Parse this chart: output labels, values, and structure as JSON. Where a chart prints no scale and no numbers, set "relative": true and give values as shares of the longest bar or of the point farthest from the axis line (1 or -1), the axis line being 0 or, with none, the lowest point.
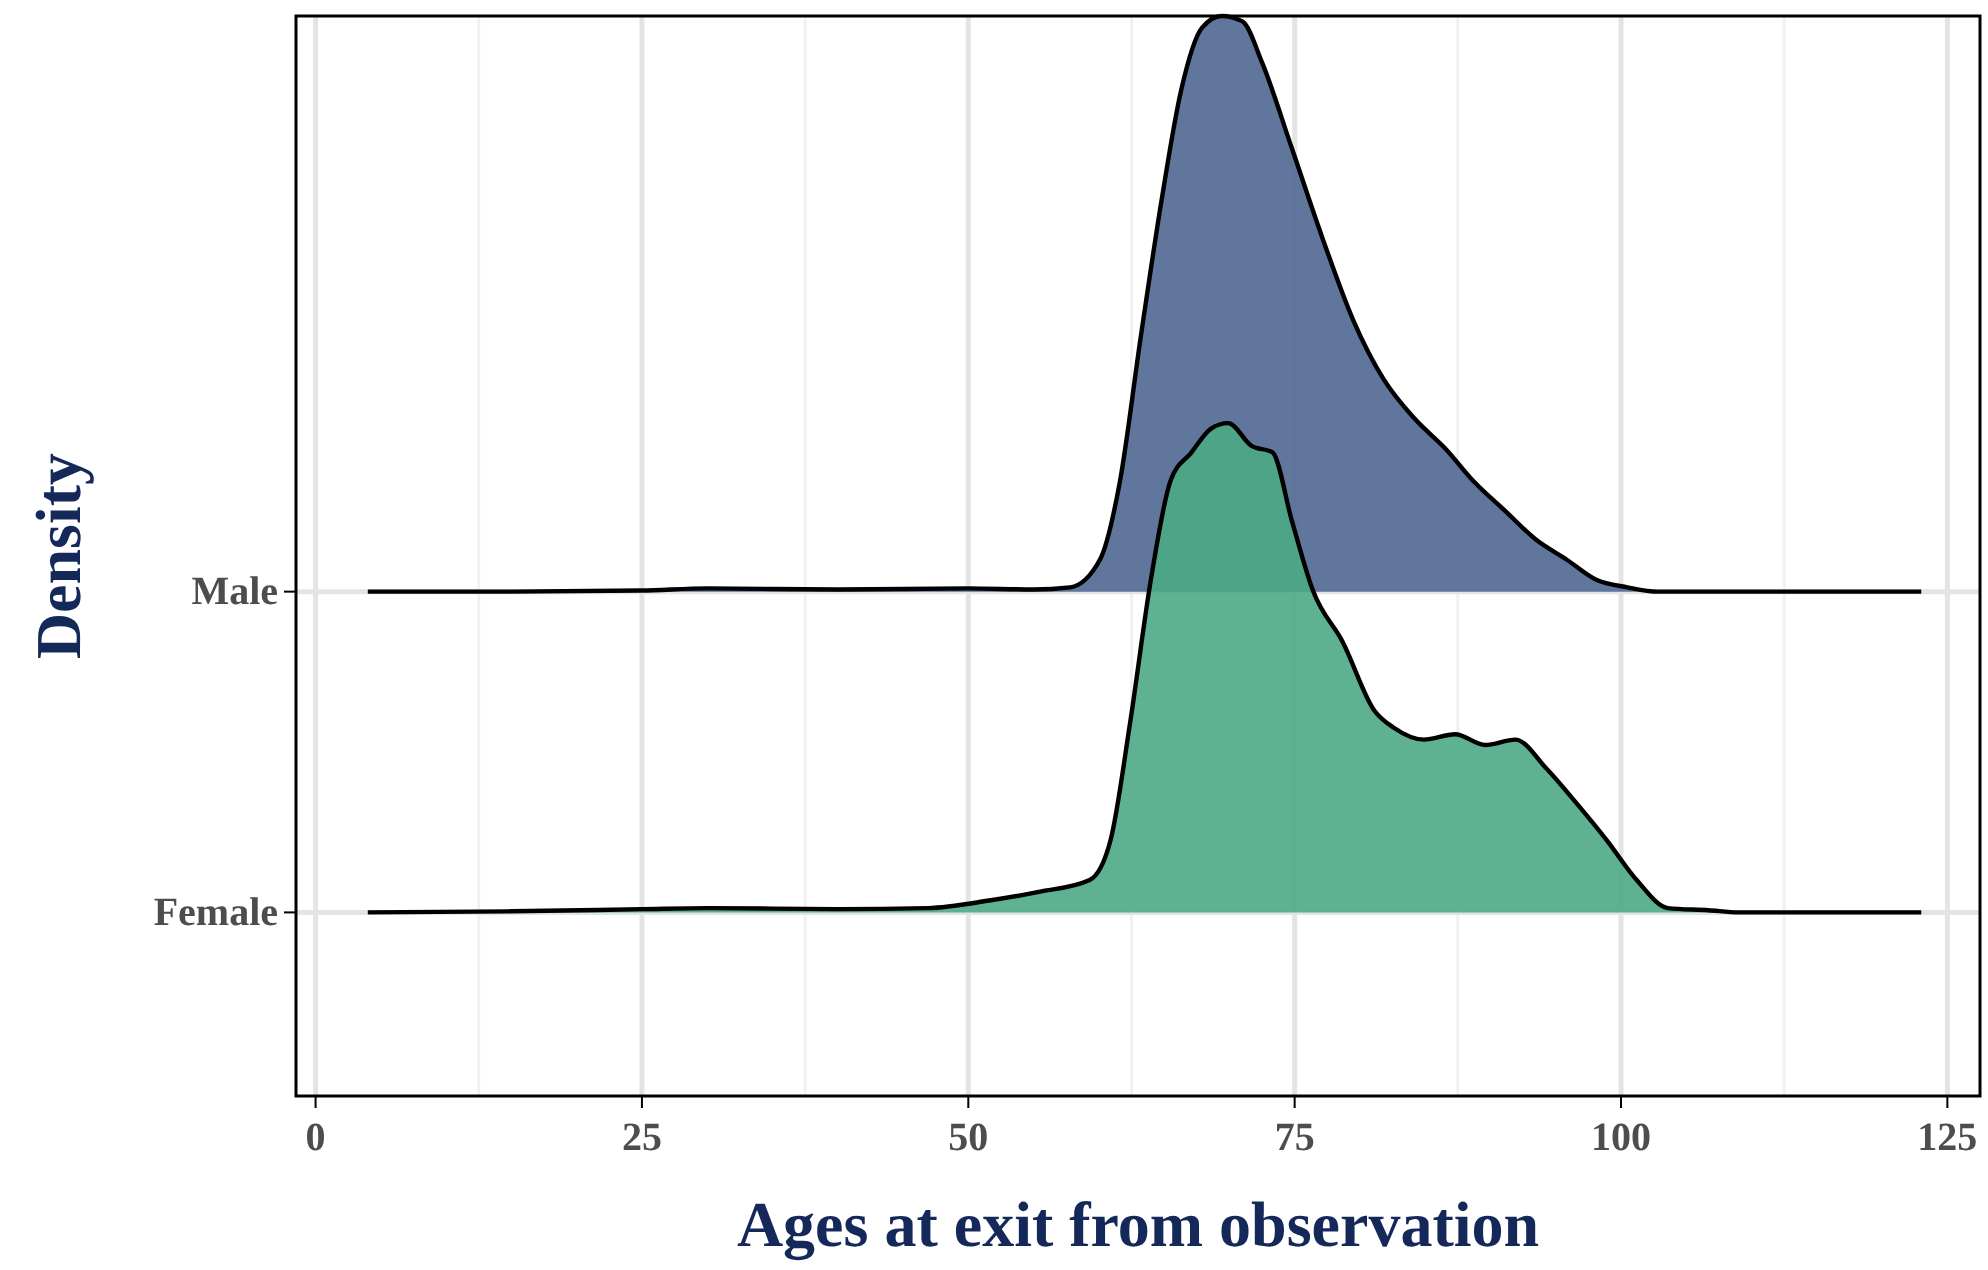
{
  "chart_data": {
    "type": "area",
    "xlabel": "Ages at exit from observation",
    "ylabel": "Density",
    "relative": true,
    "xlim": [
      -1.5,
      127.5
    ],
    "xticks": [
      0,
      25,
      50,
      75,
      100,
      125
    ],
    "grid": "x",
    "legend": "left",
    "ref_lines": [
      {
        "axis": "y",
        "value": 0.467,
        "color": "#e4e4e4"
      },
      {
        "axis": "y",
        "value": 0.17,
        "color": "#e4e4e4"
      }
    ],
    "series": [
      {
        "name": "Male",
        "color": "#4f6791",
        "x": [
          4,
          15,
          25,
          30,
          40,
          50,
          55,
          57.8,
          60.1,
          61.6,
          63.2,
          64.8,
          66.3,
          67.9,
          69.4,
          71,
          72.5,
          74.8,
          77.2,
          79.5,
          81.8,
          84.2,
          86.5,
          88.8,
          91.1,
          93.5,
          95.8,
          98.1,
          100.5,
          102.8,
          110,
          123
        ],
        "values": [
          0.467,
          0.467,
          0.468,
          0.47,
          0.469,
          0.47,
          0.469,
          0.471,
          0.497,
          0.568,
          0.702,
          0.829,
          0.931,
          0.989,
          1,
          0.995,
          0.957,
          0.877,
          0.792,
          0.718,
          0.664,
          0.627,
          0.6,
          0.568,
          0.542,
          0.515,
          0.497,
          0.478,
          0.471,
          0.467,
          0.467,
          0.467
        ]
      },
      {
        "name": "Female",
        "color": "#4caa85",
        "x": [
          4,
          15,
          25,
          30,
          40,
          46.9,
          51.6,
          55.4,
          59.3,
          60.9,
          62.4,
          64,
          65.5,
          67.1,
          68.6,
          69.9,
          71.7,
          73.3,
          74.8,
          76.4,
          78.7,
          81.1,
          82.6,
          84.9,
          87.3,
          89.6,
          91.9,
          94.3,
          96.6,
          98.9,
          101.2,
          103.6,
          106.7,
          109,
          123
        ],
        "values": [
          0.17,
          0.171,
          0.173,
          0.174,
          0.173,
          0.174,
          0.181,
          0.189,
          0.2,
          0.237,
          0.346,
          0.479,
          0.57,
          0.596,
          0.618,
          0.623,
          0.602,
          0.596,
          0.532,
          0.468,
          0.42,
          0.357,
          0.341,
          0.33,
          0.335,
          0.325,
          0.33,
          0.303,
          0.271,
          0.237,
          0.2,
          0.174,
          0.172,
          0.17,
          0.17
        ]
      }
    ]
  }
}
